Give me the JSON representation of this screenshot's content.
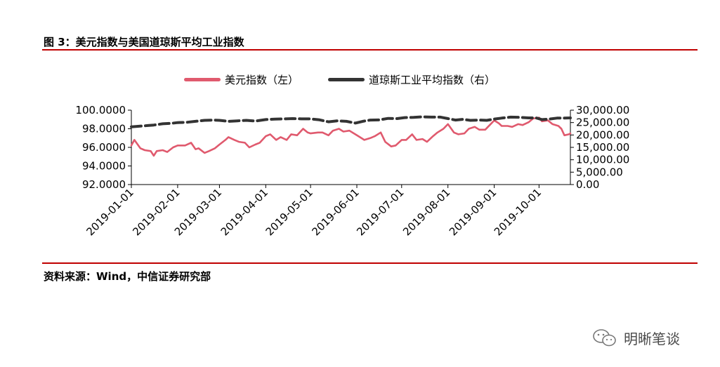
{
  "header": {
    "title": "图 3：美元指数与美国道琼斯平均工业指数"
  },
  "footer": {
    "source": "资料来源：Wind，中信证券研究部"
  },
  "watermark": {
    "text": "明晰笔谈",
    "icon": "wechat-icon"
  },
  "colors": {
    "accent_rule": "#c00000",
    "dxy": "#e05a6e",
    "dow": "#333333"
  },
  "chart_data": {
    "type": "line",
    "title": "",
    "legend": [
      "美元指数（左）",
      "道琼斯工业平均指数（右）"
    ],
    "legend_position": "top",
    "grid": false,
    "x_ticks": [
      "2019-01-01",
      "2019-02-01",
      "2019-03-01",
      "2019-04-01",
      "2019-05-01",
      "2019-06-01",
      "2019-07-01",
      "2019-08-01",
      "2019-09-01",
      "2019-10-01"
    ],
    "xlim": [
      "2019-01-01",
      "2019-10-22"
    ],
    "y_left": {
      "ticks": [
        "92.0000",
        "94.0000",
        "96.0000",
        "98.0000",
        "100.0000"
      ],
      "ylim": [
        92,
        100
      ]
    },
    "y_right": {
      "ticks": [
        "0.00",
        "5,000.00",
        "10,000.00",
        "15,000.00",
        "20,000.00",
        "25,000.00",
        "30,000.00"
      ],
      "ylim": [
        0,
        30000
      ]
    },
    "series": [
      {
        "name": "美元指数（左）",
        "axis": "left",
        "style": "solid",
        "points": [
          [
            "2019-01-01",
            96.2
          ],
          [
            "2019-01-03",
            96.8
          ],
          [
            "2019-01-07",
            95.9
          ],
          [
            "2019-01-10",
            95.7
          ],
          [
            "2019-01-14",
            95.6
          ],
          [
            "2019-01-16",
            95.1
          ],
          [
            "2019-01-18",
            95.6
          ],
          [
            "2019-01-22",
            95.7
          ],
          [
            "2019-01-25",
            95.5
          ],
          [
            "2019-01-29",
            96.0
          ],
          [
            "2019-02-01",
            96.2
          ],
          [
            "2019-02-06",
            96.2
          ],
          [
            "2019-02-10",
            96.5
          ],
          [
            "2019-02-13",
            95.8
          ],
          [
            "2019-02-15",
            95.9
          ],
          [
            "2019-02-19",
            95.4
          ],
          [
            "2019-02-22",
            95.6
          ],
          [
            "2019-02-26",
            95.9
          ],
          [
            "2019-03-01",
            96.3
          ],
          [
            "2019-03-05",
            96.8
          ],
          [
            "2019-03-07",
            97.1
          ],
          [
            "2019-03-11",
            96.8
          ],
          [
            "2019-03-14",
            96.6
          ],
          [
            "2019-03-18",
            96.5
          ],
          [
            "2019-03-21",
            96.0
          ],
          [
            "2019-03-25",
            96.3
          ],
          [
            "2019-03-28",
            96.5
          ],
          [
            "2019-04-01",
            97.2
          ],
          [
            "2019-04-04",
            97.4
          ],
          [
            "2019-04-08",
            96.8
          ],
          [
            "2019-04-11",
            97.1
          ],
          [
            "2019-04-15",
            96.8
          ],
          [
            "2019-04-18",
            97.4
          ],
          [
            "2019-04-22",
            97.3
          ],
          [
            "2019-04-26",
            98.0
          ],
          [
            "2019-04-29",
            97.6
          ],
          [
            "2019-05-01",
            97.5
          ],
          [
            "2019-05-06",
            97.6
          ],
          [
            "2019-05-09",
            97.6
          ],
          [
            "2019-05-13",
            97.3
          ],
          [
            "2019-05-16",
            97.8
          ],
          [
            "2019-05-20",
            98.0
          ],
          [
            "2019-05-23",
            97.7
          ],
          [
            "2019-05-27",
            97.8
          ],
          [
            "2019-05-30",
            97.5
          ],
          [
            "2019-06-03",
            97.1
          ],
          [
            "2019-06-06",
            96.8
          ],
          [
            "2019-06-10",
            97.0
          ],
          [
            "2019-06-13",
            97.2
          ],
          [
            "2019-06-17",
            97.6
          ],
          [
            "2019-06-20",
            96.6
          ],
          [
            "2019-06-24",
            96.1
          ],
          [
            "2019-06-27",
            96.2
          ],
          [
            "2019-07-01",
            96.8
          ],
          [
            "2019-07-04",
            96.8
          ],
          [
            "2019-07-08",
            97.4
          ],
          [
            "2019-07-11",
            96.8
          ],
          [
            "2019-07-15",
            96.9
          ],
          [
            "2019-07-18",
            96.6
          ],
          [
            "2019-07-22",
            97.2
          ],
          [
            "2019-07-25",
            97.6
          ],
          [
            "2019-07-29",
            98.0
          ],
          [
            "2019-08-01",
            98.5
          ],
          [
            "2019-08-05",
            97.6
          ],
          [
            "2019-08-08",
            97.4
          ],
          [
            "2019-08-12",
            97.5
          ],
          [
            "2019-08-15",
            98.0
          ],
          [
            "2019-08-19",
            98.2
          ],
          [
            "2019-08-22",
            97.9
          ],
          [
            "2019-08-26",
            97.9
          ],
          [
            "2019-08-29",
            98.4
          ],
          [
            "2019-09-01",
            98.9
          ],
          [
            "2019-09-04",
            98.6
          ],
          [
            "2019-09-06",
            98.3
          ],
          [
            "2019-09-10",
            98.3
          ],
          [
            "2019-09-13",
            98.2
          ],
          [
            "2019-09-17",
            98.5
          ],
          [
            "2019-09-20",
            98.4
          ],
          [
            "2019-09-24",
            98.7
          ],
          [
            "2019-09-27",
            99.1
          ],
          [
            "2019-10-01",
            99.2
          ],
          [
            "2019-10-03",
            98.8
          ],
          [
            "2019-10-07",
            98.9
          ],
          [
            "2019-10-10",
            98.5
          ],
          [
            "2019-10-14",
            98.3
          ],
          [
            "2019-10-16",
            98.0
          ],
          [
            "2019-10-18",
            97.3
          ],
          [
            "2019-10-21",
            97.4
          ],
          [
            "2019-10-22",
            97.5
          ]
        ]
      },
      {
        "name": "道琼斯工业平均指数（右）",
        "axis": "right",
        "style": "dashed",
        "points": [
          [
            "2019-01-01",
            23300
          ],
          [
            "2019-01-04",
            23400
          ],
          [
            "2019-01-08",
            23600
          ],
          [
            "2019-01-12",
            23800
          ],
          [
            "2019-01-16",
            24000
          ],
          [
            "2019-01-22",
            24500
          ],
          [
            "2019-01-28",
            24700
          ],
          [
            "2019-02-01",
            25000
          ],
          [
            "2019-02-07",
            25100
          ],
          [
            "2019-02-13",
            25500
          ],
          [
            "2019-02-19",
            25900
          ],
          [
            "2019-02-25",
            26000
          ],
          [
            "2019-03-01",
            25900
          ],
          [
            "2019-03-07",
            25500
          ],
          [
            "2019-03-13",
            25700
          ],
          [
            "2019-03-19",
            25900
          ],
          [
            "2019-03-25",
            25600
          ],
          [
            "2019-04-01",
            26200
          ],
          [
            "2019-04-07",
            26400
          ],
          [
            "2019-04-13",
            26500
          ],
          [
            "2019-04-19",
            26600
          ],
          [
            "2019-04-25",
            26500
          ],
          [
            "2019-05-01",
            26500
          ],
          [
            "2019-05-07",
            26100
          ],
          [
            "2019-05-13",
            25300
          ],
          [
            "2019-05-19",
            25700
          ],
          [
            "2019-05-25",
            25500
          ],
          [
            "2019-05-31",
            24800
          ],
          [
            "2019-06-05",
            25500
          ],
          [
            "2019-06-10",
            26000
          ],
          [
            "2019-06-16",
            26100
          ],
          [
            "2019-06-22",
            26700
          ],
          [
            "2019-06-28",
            26600
          ],
          [
            "2019-07-03",
            27000
          ],
          [
            "2019-07-09",
            27100
          ],
          [
            "2019-07-15",
            27300
          ],
          [
            "2019-07-21",
            27200
          ],
          [
            "2019-07-27",
            27200
          ],
          [
            "2019-08-01",
            26600
          ],
          [
            "2019-08-06",
            26000
          ],
          [
            "2019-08-11",
            26300
          ],
          [
            "2019-08-16",
            25900
          ],
          [
            "2019-08-22",
            26000
          ],
          [
            "2019-08-27",
            25900
          ],
          [
            "2019-09-01",
            26400
          ],
          [
            "2019-09-06",
            26800
          ],
          [
            "2019-09-12",
            27200
          ],
          [
            "2019-09-18",
            27100
          ],
          [
            "2019-09-24",
            26900
          ],
          [
            "2019-09-29",
            26900
          ],
          [
            "2019-10-03",
            26200
          ],
          [
            "2019-10-08",
            26400
          ],
          [
            "2019-10-13",
            26800
          ],
          [
            "2019-10-18",
            26800
          ],
          [
            "2019-10-22",
            26900
          ]
        ]
      }
    ]
  }
}
